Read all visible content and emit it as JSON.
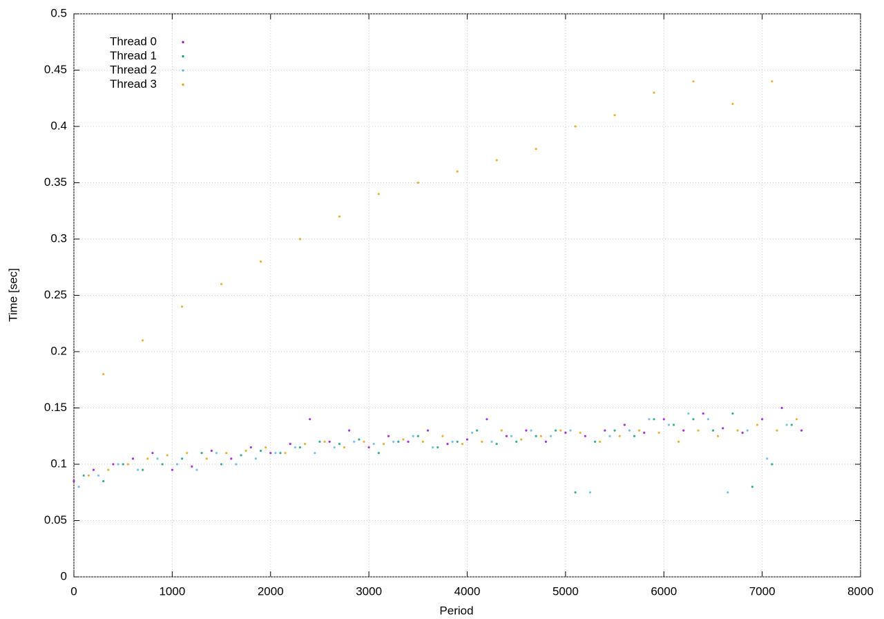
{
  "chart_data": {
    "type": "scatter",
    "xlabel": "Period",
    "ylabel": "Time [sec]",
    "xlim": [
      0,
      8000
    ],
    "xticks": [
      0,
      1000,
      2000,
      3000,
      4000,
      5000,
      6000,
      7000,
      8000
    ],
    "ylim": [
      0,
      0.5
    ],
    "yticks": [
      0,
      0.05,
      0.1,
      0.15,
      0.2,
      0.25,
      0.3,
      0.35,
      0.4,
      0.45,
      0.5
    ],
    "grid": true,
    "legend": "top-left",
    "series": [
      {
        "name": "Thread 0",
        "color": "#9400d3",
        "x": [
          0,
          200,
          400,
          600,
          800,
          1000,
          1200,
          1400,
          1600,
          1800,
          2000,
          2200,
          2400,
          2600,
          2800,
          3000,
          3200,
          3400,
          3600,
          3800,
          4000,
          4200,
          4400,
          4600,
          4800,
          5000,
          5200,
          5400,
          5600,
          5800,
          6000,
          6200,
          6400,
          6600,
          6800,
          7000,
          7200,
          7400
        ],
        "values": [
          0.085,
          0.095,
          0.1,
          0.105,
          0.11,
          0.095,
          0.098,
          0.112,
          0.105,
          0.115,
          0.11,
          0.118,
          0.14,
          0.12,
          0.13,
          0.115,
          0.125,
          0.12,
          0.13,
          0.118,
          0.122,
          0.14,
          0.125,
          0.13,
          0.12,
          0.128,
          0.125,
          0.13,
          0.135,
          0.128,
          0.14,
          0.13,
          0.145,
          0.132,
          0.128,
          0.14,
          0.15,
          0.13
        ]
      },
      {
        "name": "Thread 1",
        "color": "#009e73",
        "x": [
          100,
          300,
          500,
          700,
          900,
          1100,
          1300,
          1500,
          1700,
          1900,
          2100,
          2300,
          2500,
          2700,
          2900,
          3100,
          3300,
          3500,
          3700,
          3900,
          4100,
          4300,
          4500,
          4700,
          4900,
          5100,
          5300,
          5500,
          5700,
          5900,
          6100,
          6300,
          6500,
          6700,
          6900,
          7100,
          7300
        ],
        "values": [
          0.09,
          0.085,
          0.1,
          0.095,
          0.1,
          0.105,
          0.11,
          0.1,
          0.108,
          0.112,
          0.11,
          0.115,
          0.12,
          0.118,
          0.122,
          0.11,
          0.12,
          0.125,
          0.115,
          0.12,
          0.13,
          0.118,
          0.12,
          0.125,
          0.13,
          0.075,
          0.12,
          0.13,
          0.125,
          0.14,
          0.135,
          0.14,
          0.13,
          0.145,
          0.08,
          0.1,
          0.135
        ]
      },
      {
        "name": "Thread 2",
        "color": "#56b4e9",
        "x": [
          50,
          250,
          450,
          650,
          850,
          1050,
          1250,
          1450,
          1650,
          1850,
          2050,
          2250,
          2450,
          2650,
          2850,
          3050,
          3250,
          3450,
          3650,
          3850,
          4050,
          4250,
          4450,
          4650,
          4850,
          5050,
          5250,
          5450,
          5650,
          5850,
          6050,
          6250,
          6450,
          6650,
          6850,
          7050,
          7250
        ],
        "values": [
          0.08,
          0.09,
          0.1,
          0.095,
          0.105,
          0.1,
          0.095,
          0.11,
          0.1,
          0.105,
          0.11,
          0.115,
          0.11,
          0.115,
          0.12,
          0.118,
          0.12,
          0.125,
          0.115,
          0.12,
          0.128,
          0.12,
          0.125,
          0.13,
          0.125,
          0.13,
          0.075,
          0.125,
          0.13,
          0.14,
          0.135,
          0.145,
          0.14,
          0.075,
          0.13,
          0.105,
          0.135
        ]
      },
      {
        "name": "Thread 3",
        "color": "#e69f00",
        "x": [
          150,
          350,
          550,
          750,
          950,
          1150,
          1350,
          1550,
          1750,
          1950,
          2150,
          2350,
          2550,
          2750,
          2950,
          3150,
          3350,
          3550,
          3750,
          3950,
          4150,
          4350,
          4550,
          4750,
          4950,
          5150,
          5350,
          5550,
          5750,
          5950,
          6150,
          6350,
          6550,
          6750,
          6950,
          7150,
          7350,
          300,
          700,
          1100,
          1500,
          1900,
          2300,
          2700,
          3100,
          3500,
          3900,
          4300,
          4700,
          5100,
          5500,
          5900,
          6300,
          6700,
          7100
        ],
        "values": [
          0.09,
          0.095,
          0.1,
          0.105,
          0.108,
          0.11,
          0.105,
          0.11,
          0.112,
          0.115,
          0.11,
          0.118,
          0.12,
          0.115,
          0.12,
          0.118,
          0.122,
          0.12,
          0.125,
          0.118,
          0.12,
          0.13,
          0.122,
          0.125,
          0.13,
          0.128,
          0.12,
          0.125,
          0.13,
          0.128,
          0.12,
          0.13,
          0.125,
          0.13,
          0.135,
          0.13,
          0.14,
          0.18,
          0.21,
          0.24,
          0.26,
          0.28,
          0.3,
          0.32,
          0.34,
          0.35,
          0.36,
          0.37,
          0.38,
          0.4,
          0.41,
          0.43,
          0.44,
          0.42,
          0.44
        ]
      }
    ]
  }
}
